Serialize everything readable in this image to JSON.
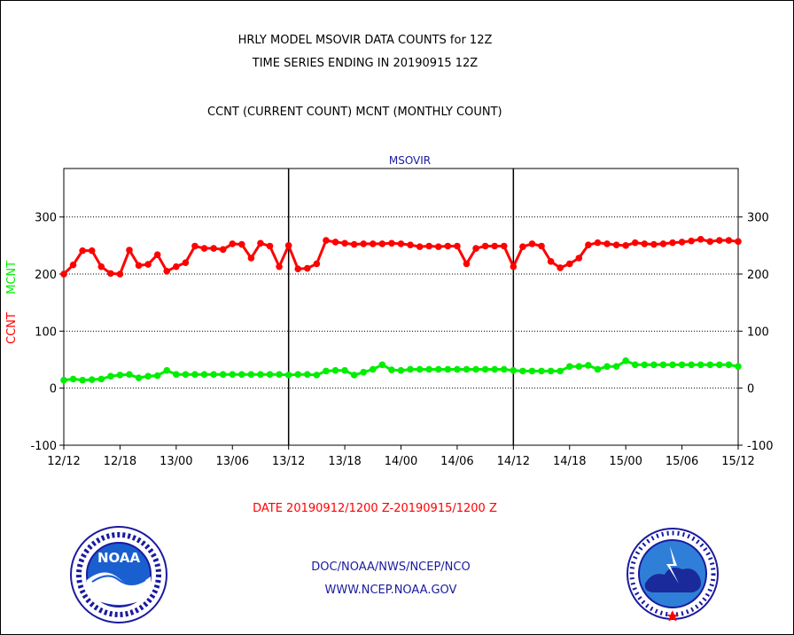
{
  "page": {
    "title_line1": "HRLY MODEL MSOVIR DATA COUNTS for 12Z",
    "title_line2": "TIME SERIES ENDING IN 20190915 12Z",
    "subtitle": "CCNT (CURRENT COUNT) MCNT (MONTHLY COUNT)",
    "footer_date": "DATE 20190912/1200 Z-20190915/1200 Z",
    "footer_org": "DOC/NOAA/NWS/NCEP/NCO",
    "footer_url": "WWW.NCEP.NOAA.GOV",
    "left_logo": {
      "name": "noaa-logo",
      "text": "NOAA"
    },
    "right_logo": {
      "name": "nws-logo"
    }
  },
  "chart_data": {
    "type": "line",
    "title": "MSOVIR",
    "ylabel_parts": [
      {
        "text": "CCNT",
        "color": "#ff0000"
      },
      {
        "text": "MCNT",
        "color": "#00ee00"
      }
    ],
    "x_ticks": [
      "12/12",
      "12/18",
      "13/00",
      "13/06",
      "13/12",
      "13/18",
      "14/00",
      "14/06",
      "14/12",
      "14/18",
      "15/00",
      "15/06",
      "15/12"
    ],
    "y_ticks": [
      -100,
      0,
      100,
      200,
      300
    ],
    "ylim": [
      -100,
      385
    ],
    "xlim_hours": [
      0,
      72
    ],
    "grid": "horizontal dotted at 300, 200, 100, 0; vertical solid at 13/12 and 14/12",
    "series": [
      {
        "name": "CCNT",
        "color": "#ff0000",
        "values": [
          200,
          216,
          241,
          241,
          213,
          201,
          200,
          242,
          215,
          217,
          234,
          205,
          213,
          220,
          249,
          245,
          245,
          243,
          253,
          252,
          228,
          254,
          249,
          213,
          250,
          209,
          210,
          218,
          259,
          256,
          254,
          252,
          253,
          253,
          253,
          254,
          253,
          251,
          248,
          249,
          248,
          249,
          249,
          218,
          245,
          249,
          249,
          249,
          213,
          248,
          253,
          249,
          222,
          211,
          218,
          228,
          251,
          255,
          253,
          251,
          250,
          255,
          253,
          252,
          253,
          255,
          256,
          258,
          261,
          257,
          259,
          259,
          257
        ]
      },
      {
        "name": "MCNT",
        "color": "#00ee00",
        "values": [
          14,
          16,
          14,
          15,
          16,
          21,
          23,
          24,
          18,
          21,
          22,
          31,
          24,
          24,
          24,
          24,
          24,
          24,
          24,
          24,
          24,
          24,
          24,
          24,
          23,
          24,
          24,
          23,
          30,
          31,
          31,
          23,
          28,
          33,
          41,
          32,
          31,
          33,
          33,
          33,
          33,
          33,
          33,
          33,
          33,
          33,
          33,
          33,
          31,
          30,
          30,
          30,
          30,
          30,
          38,
          38,
          40,
          33,
          38,
          38,
          48,
          41,
          41,
          41,
          41,
          41,
          41,
          41,
          41,
          41,
          41,
          41,
          38
        ]
      }
    ]
  }
}
